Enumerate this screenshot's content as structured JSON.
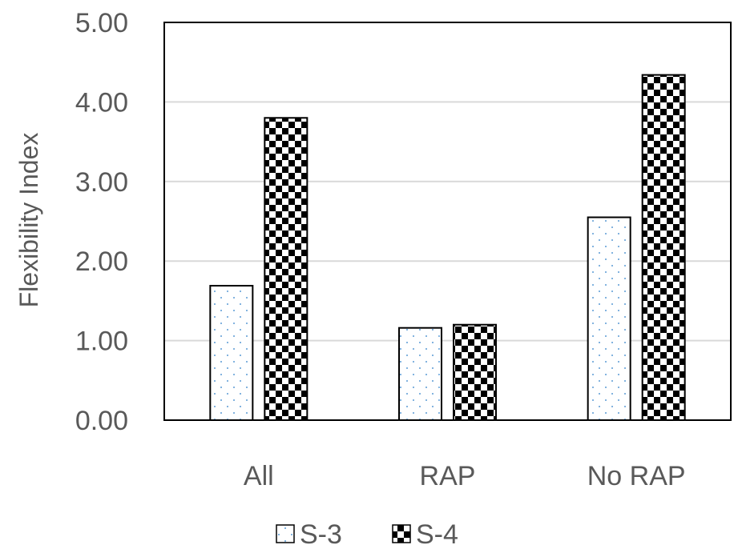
{
  "chart_data": {
    "type": "bar",
    "title": "",
    "xlabel": "",
    "ylabel": "Flexibility Index",
    "categories": [
      "All",
      "RAP",
      "No RAP"
    ],
    "series": [
      {
        "name": "S-3",
        "values": [
          1.69,
          1.16,
          2.55
        ],
        "pattern": "dots",
        "dot_color": "#5b9bd5"
      },
      {
        "name": "S-4",
        "values": [
          3.8,
          1.2,
          4.34
        ],
        "pattern": "checkerboard",
        "fill_color": "#000000"
      }
    ],
    "ylim": [
      0,
      5
    ],
    "yticks": [
      "0.00",
      "1.00",
      "2.00",
      "3.00",
      "4.00",
      "5.00"
    ],
    "grid": true,
    "legend_position": "bottom",
    "colors": {
      "text": "#595959",
      "gridline": "#d9d9d9",
      "frame": "#000000",
      "bar_outline": "#000000"
    }
  }
}
